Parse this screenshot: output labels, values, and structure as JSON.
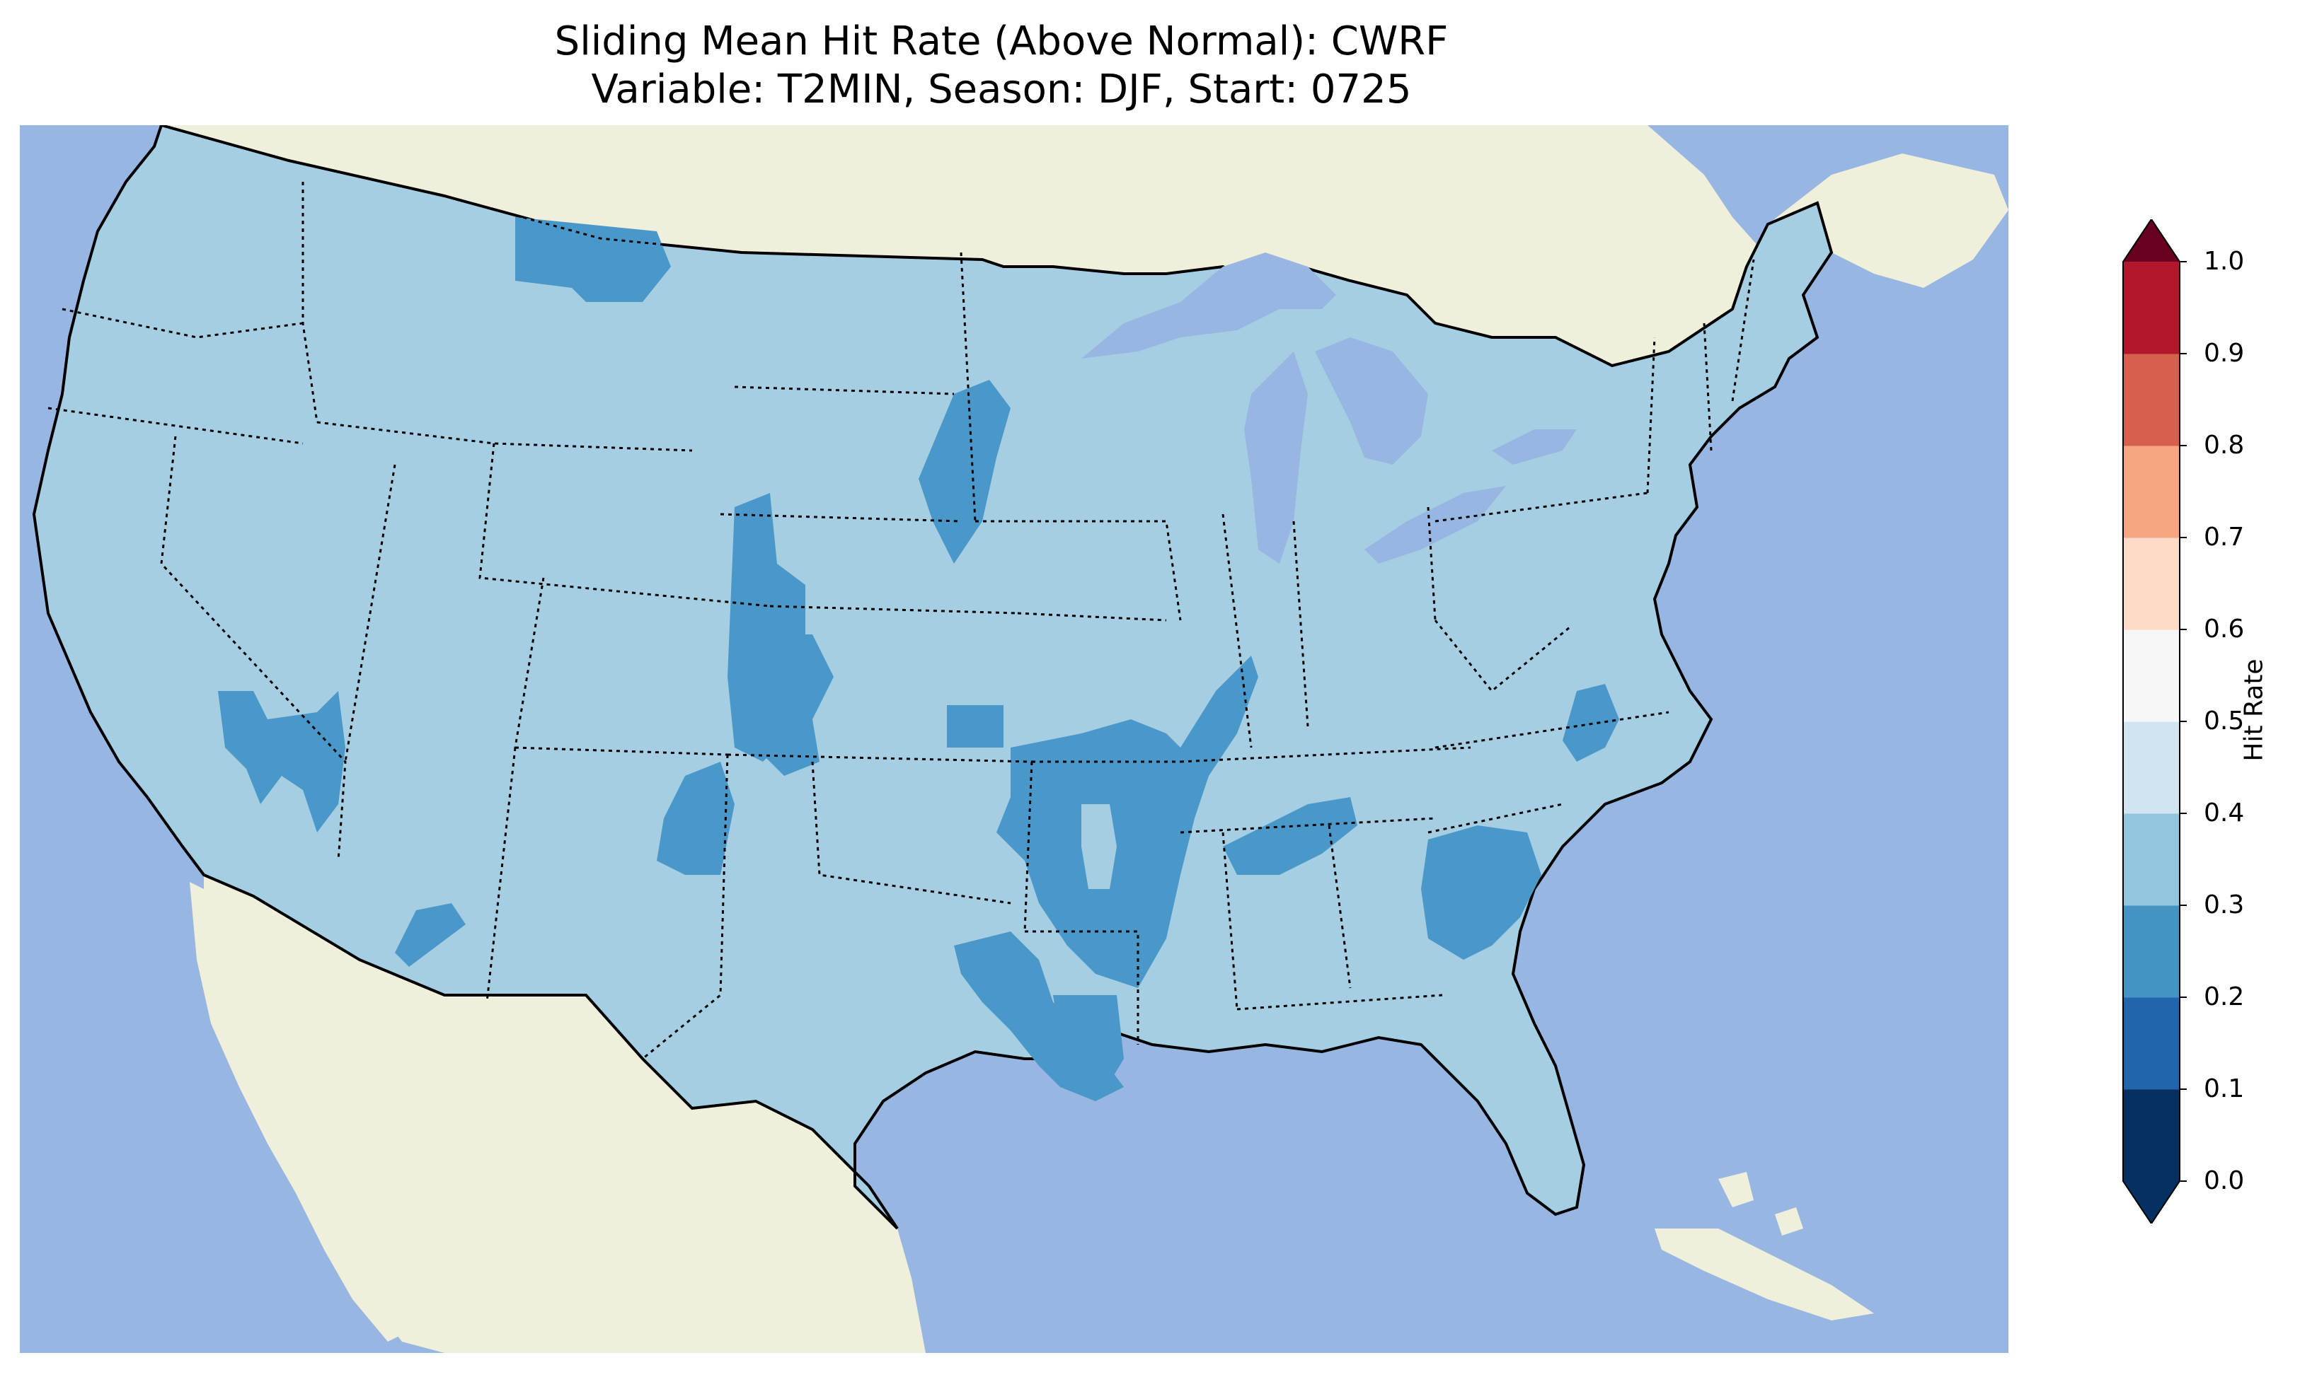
{
  "title": {
    "line1": "Sliding Mean Hit Rate (Above Normal): CWRF",
    "line2": "Variable: T2MIN, Season: DJF, Start: 0725"
  },
  "map": {
    "projection": "conus-lambert",
    "colors": {
      "ocean": "#97b6e1",
      "land": "#efefdb",
      "border": "#000000"
    },
    "dominant_class": "0.3-0.4",
    "regions_0_2_to_0_3": [
      "northern-montana",
      "eastern-south-dakota",
      "western-nebraska-kansas-colorado-border",
      "central-kansas",
      "southeast-colorado-northeast-new-mexico",
      "western-nevada",
      "western-arizona",
      "missouri-arkansas-illinois",
      "east-texas-louisiana",
      "northern-alabama-tennessee",
      "south-carolina-georgia",
      "eastern-north-carolina"
    ]
  },
  "colorbar": {
    "label": "Hit Rate",
    "extend": "both",
    "levels": [
      "0.0",
      "0.1",
      "0.2",
      "0.3",
      "0.4",
      "0.5",
      "0.6",
      "0.7",
      "0.8",
      "0.9",
      "1.0"
    ],
    "colors": [
      "#053061",
      "#2166ac",
      "#4393c3",
      "#92c5de",
      "#d1e5f0",
      "#f7f7f7",
      "#fddbc7",
      "#f4a582",
      "#d6604d",
      "#b2182b",
      "#67001f"
    ],
    "under_color": "#053061",
    "over_color": "#67001f"
  }
}
